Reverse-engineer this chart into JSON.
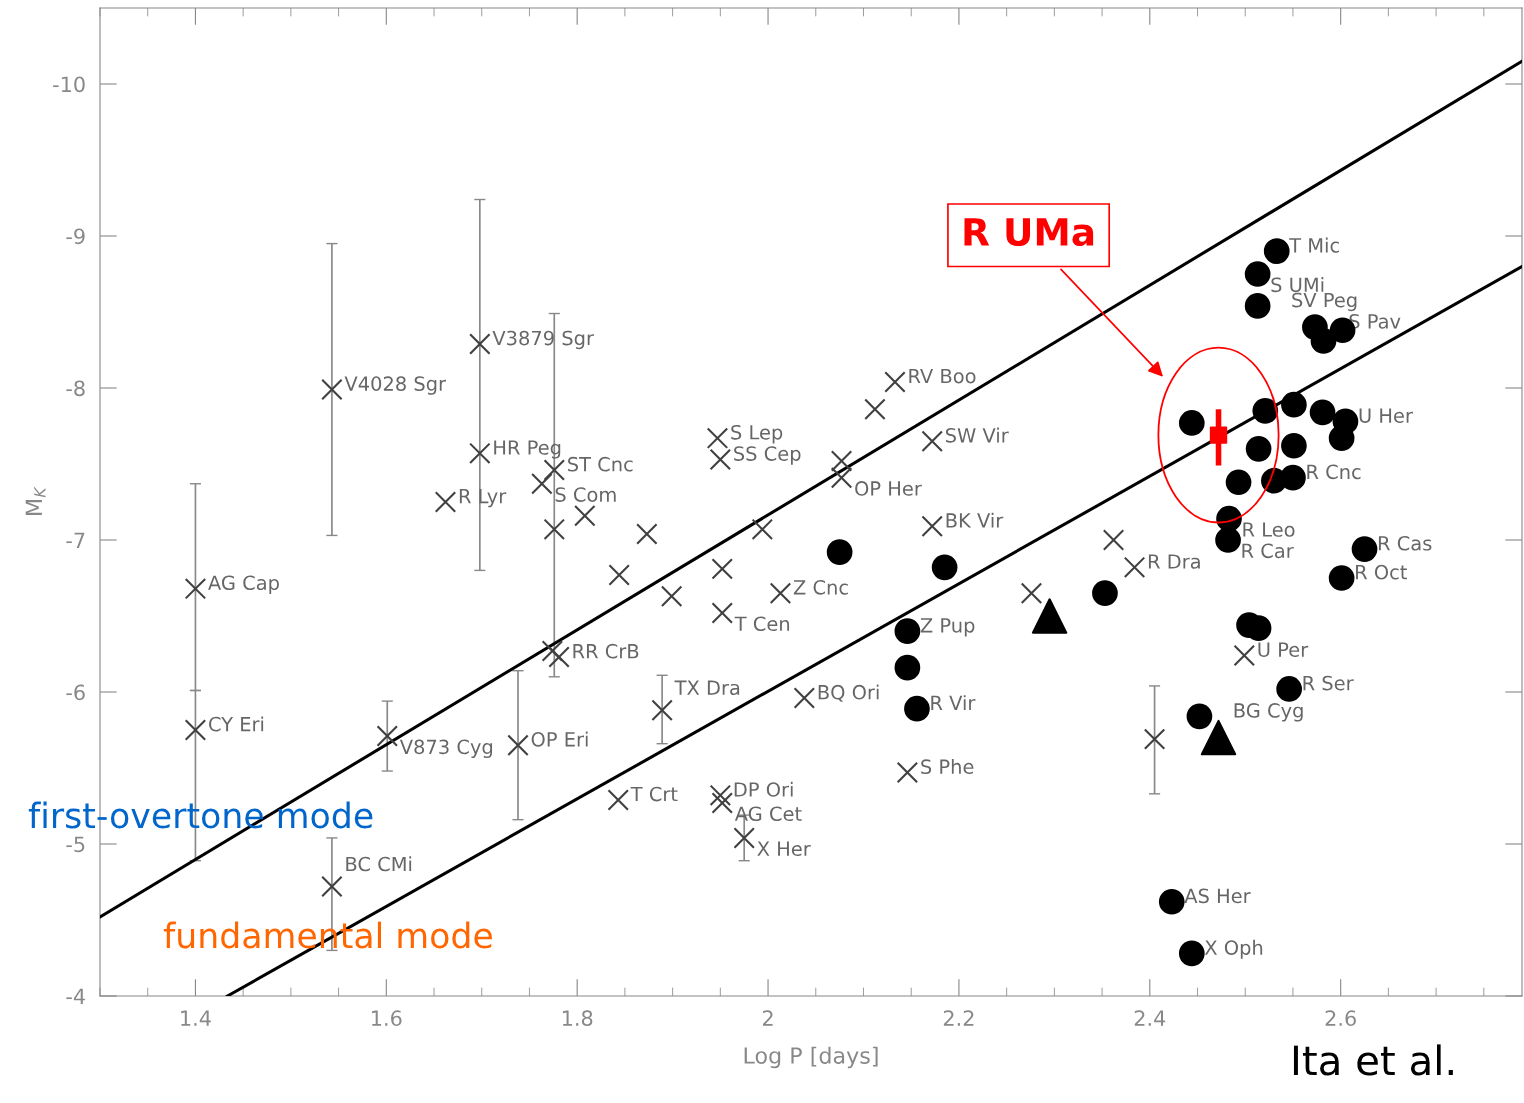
{
  "chart_data": {
    "type": "scatter",
    "xlabel": "Log P [days]",
    "ylabel": "M$_{K}$",
    "xlim": [
      1.3,
      2.79
    ],
    "ylim": [
      -4,
      -10.5
    ],
    "xticks": [
      1.4,
      1.6,
      1.8,
      2,
      2.2,
      2.4,
      2.6
    ],
    "yticks": [
      -4,
      -5,
      -6,
      -7,
      -8,
      -9,
      -10
    ],
    "grid": false,
    "legend": false,
    "series": [
      {
        "type": "line",
        "color": "#000000",
        "line_style": "solid",
        "x": [
          1.3,
          2.79
        ],
        "values": [
          -4.52,
          -10.15
        ]
      },
      {
        "type": "line",
        "color": "#000000",
        "line_style": "solid",
        "x": [
          1.4335,
          2.79
        ],
        "values": [
          -4.0,
          -8.8
        ]
      },
      {
        "marker": "cross",
        "color": "#404040",
        "x": [
          1.4,
          1.4,
          1.543,
          1.698,
          1.698,
          1.662,
          1.543,
          1.601,
          1.738,
          1.781,
          1.774,
          1.763,
          1.776,
          1.776,
          1.808,
          1.889,
          1.843,
          1.844,
          1.899,
          1.873,
          1.947,
          1.95,
          1.952,
          1.952,
          1.95,
          1.952,
          1.975,
          2.038,
          2.146,
          2.133,
          2.112,
          2.077,
          2.077,
          2.172,
          2.172,
          1.994,
          2.013,
          2.276,
          2.362,
          2.384,
          2.405,
          2.499
        ],
        "values": [
          -6.68,
          -5.75,
          -7.99,
          -8.29,
          -7.57,
          -7.25,
          -4.72,
          -5.71,
          -5.65,
          -6.23,
          -6.27,
          -7.37,
          -7.46,
          -7.07,
          -7.16,
          -5.88,
          -5.29,
          -6.77,
          -6.63,
          -7.04,
          -7.67,
          -7.53,
          -6.81,
          -6.52,
          -5.32,
          -5.27,
          -5.04,
          -5.96,
          -5.47,
          -8.04,
          -7.86,
          -7.52,
          -7.41,
          -7.09,
          -7.65,
          -7.07,
          -6.65,
          -6.65,
          -7.0,
          -6.82,
          -5.69,
          -6.24
        ],
        "errors": [
          [
            -7.37,
            -6.01
          ],
          [
            -6.01,
            -4.89
          ],
          [
            -8.95,
            -7.03
          ],
          [
            -9.24,
            -6.8
          ],
          null,
          null,
          [
            -5.04,
            -4.3
          ],
          [
            -5.94,
            -5.48
          ],
          [
            -6.14,
            -5.16
          ],
          null,
          null,
          null,
          [
            -8.49,
            -6.1
          ],
          null,
          null,
          [
            -6.11,
            -5.66
          ],
          null,
          null,
          null,
          null,
          null,
          null,
          null,
          null,
          null,
          null,
          [
            -5.19,
            -4.89
          ],
          null,
          null,
          null,
          null,
          null,
          null,
          null,
          null,
          null,
          null,
          null,
          null,
          null,
          [
            -6.04,
            -5.33
          ],
          null
        ]
      },
      {
        "marker": "circle",
        "color": "#000000",
        "x": [
          2.533,
          2.513,
          2.513,
          2.573,
          2.582,
          2.602,
          2.444,
          2.521,
          2.551,
          2.581,
          2.605,
          2.514,
          2.551,
          2.601,
          2.493,
          2.53,
          2.55,
          2.483,
          2.482,
          2.625,
          2.601,
          2.353,
          2.504,
          2.514,
          2.546,
          2.452,
          2.423,
          2.444,
          2.075,
          2.185,
          2.146,
          2.146,
          2.156
        ],
        "values": [
          -8.9,
          -8.75,
          -8.54,
          -8.4,
          -8.31,
          -8.38,
          -7.77,
          -7.85,
          -7.89,
          -7.84,
          -7.78,
          -7.6,
          -7.62,
          -7.67,
          -7.38,
          -7.39,
          -7.41,
          -7.14,
          -7.0,
          -6.94,
          -6.75,
          -6.65,
          -6.44,
          -6.42,
          -6.02,
          -5.84,
          -4.62,
          -4.28,
          -6.92,
          -6.82,
          -6.4,
          -6.16,
          -5.89
        ]
      },
      {
        "marker": "triangle",
        "color": "#000000",
        "x": [
          2.295,
          2.472
        ],
        "values": [
          -6.5,
          -5.7
        ]
      },
      {
        "marker": "square",
        "color": "#ff0000",
        "name": "R UMa",
        "x": [
          2.472
        ],
        "values": [
          -7.69
        ],
        "errors": [
          [
            -7.86,
            -7.49
          ]
        ]
      }
    ],
    "annotations": [
      "first-overtone mode",
      "fundamental mode",
      "Ita et al.",
      {
        "text": "AG Cap",
        "x": 1.4,
        "y": -6.68
      },
      {
        "text": "CY Eri",
        "x": 1.4,
        "y": -5.75
      },
      {
        "text": "V4028 Sgr",
        "x": 1.543,
        "y": -7.99
      },
      {
        "text": "V3879 Sgr",
        "x": 1.698,
        "y": -8.29
      },
      {
        "text": "HR Peg",
        "x": 1.698,
        "y": -7.57
      },
      {
        "text": "R Lyr",
        "x": 1.662,
        "y": -7.25
      },
      {
        "text": "BC CMi",
        "x": 1.543,
        "y": -4.72
      },
      {
        "text": "V873 Cyg",
        "x": 1.601,
        "y": -5.71
      },
      {
        "text": "OP Eri",
        "x": 1.738,
        "y": -5.65
      },
      {
        "text": "RR CrB",
        "x": 1.781,
        "y": -6.23
      },
      {
        "text": "S Com",
        "x": 1.763,
        "y": -7.37
      },
      {
        "text": "ST Cnc",
        "x": 1.776,
        "y": -7.46
      },
      {
        "text": "TX Dra",
        "x": 1.889,
        "y": -5.88
      },
      {
        "text": "T Crt",
        "x": 1.843,
        "y": -5.29
      },
      {
        "text": "S Lep",
        "x": 1.947,
        "y": -7.67
      },
      {
        "text": "SS Cep",
        "x": 1.95,
        "y": -7.53
      },
      {
        "text": "T Cen",
        "x": 1.952,
        "y": -6.52
      },
      {
        "text": "DP Ori",
        "x": 1.95,
        "y": -5.32
      },
      {
        "text": "AG Cet",
        "x": 1.952,
        "y": -5.27
      },
      {
        "text": "X Her",
        "x": 1.975,
        "y": -5.04
      },
      {
        "text": "Z Cnc",
        "x": 2.013,
        "y": -6.65
      },
      {
        "text": "BQ Ori",
        "x": 2.038,
        "y": -5.96
      },
      {
        "text": "S Phe",
        "x": 2.146,
        "y": -5.47
      },
      {
        "text": "RV Boo",
        "x": 2.133,
        "y": -8.04
      },
      {
        "text": "OP Her",
        "x": 2.077,
        "y": -7.41
      },
      {
        "text": "BK Vir",
        "x": 2.172,
        "y": -7.09
      },
      {
        "text": "SW Vir",
        "x": 2.172,
        "y": -7.65
      },
      {
        "text": "R Dra",
        "x": 2.384,
        "y": -6.82
      },
      {
        "text": "U Per",
        "x": 2.499,
        "y": -6.24
      },
      {
        "text": "T Mic",
        "x": 2.533,
        "y": -8.9
      },
      {
        "text": "S UMi",
        "x": 2.513,
        "y": -8.75
      },
      {
        "text": "SV Peg",
        "x": 2.513,
        "y": -8.54
      },
      {
        "text": "S Pav",
        "x": 2.573,
        "y": -8.4
      },
      {
        "text": "U Her",
        "x": 2.605,
        "y": -7.78
      },
      {
        "text": "R Cnc",
        "x": 2.55,
        "y": -7.41
      },
      {
        "text": "R Leo",
        "x": 2.483,
        "y": -7.14
      },
      {
        "text": "R Car",
        "x": 2.482,
        "y": -7.0
      },
      {
        "text": "R Cas",
        "x": 2.625,
        "y": -6.94
      },
      {
        "text": "R Oct",
        "x": 2.601,
        "y": -6.75
      },
      {
        "text": "R Ser",
        "x": 2.546,
        "y": -6.02
      },
      {
        "text": "BG Cyg",
        "x": 2.452,
        "y": -5.84
      },
      {
        "text": "AS Her",
        "x": 2.423,
        "y": -4.62
      },
      {
        "text": "X Oph",
        "x": 2.444,
        "y": -4.28
      },
      {
        "text": "Z Pup",
        "x": 2.146,
        "y": -6.4
      },
      {
        "text": "R Vir",
        "x": 2.156,
        "y": -5.89
      }
    ]
  }
}
